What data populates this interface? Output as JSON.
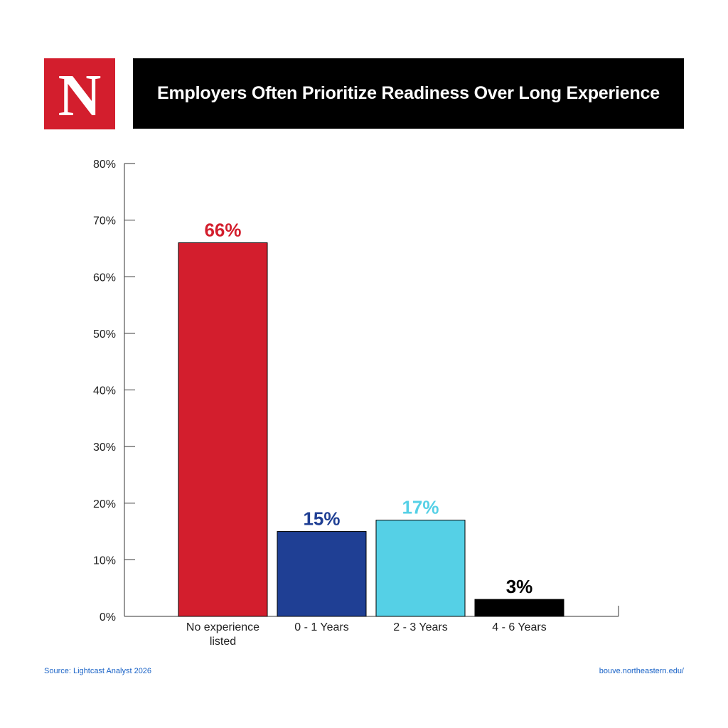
{
  "header": {
    "logo_letter": "N",
    "title": "Employers Often Prioritize Readiness Over Long Experience"
  },
  "colors": {
    "brand_red": "#d31e2d",
    "header_bg": "#000000",
    "link_blue": "#1a63c7"
  },
  "footer": {
    "source": "Source: Lightcast Analyst 2026",
    "url": "bouve.northeastern.edu/"
  },
  "chart_data": {
    "type": "bar",
    "title": "Employers Often Prioritize Readiness Over Long Experience",
    "xlabel": "",
    "ylabel": "",
    "ylim": [
      0,
      80
    ],
    "yticks": [
      "0%",
      "10%",
      "20%",
      "30%",
      "40%",
      "50%",
      "60%",
      "70%",
      "80%"
    ],
    "grid": false,
    "legend": "none",
    "categories": [
      [
        "No experience",
        "listed"
      ],
      [
        "0 - 1 Years"
      ],
      [
        "2 - 3 Years"
      ],
      [
        "4 - 6  Years"
      ]
    ],
    "values": [
      66,
      15,
      17,
      3
    ],
    "data_labels": [
      "66%",
      "15%",
      "17%",
      "3%"
    ],
    "bar_colors": [
      "#d31e2d",
      "#1f3f94",
      "#55d0e6",
      "#000000"
    ]
  }
}
